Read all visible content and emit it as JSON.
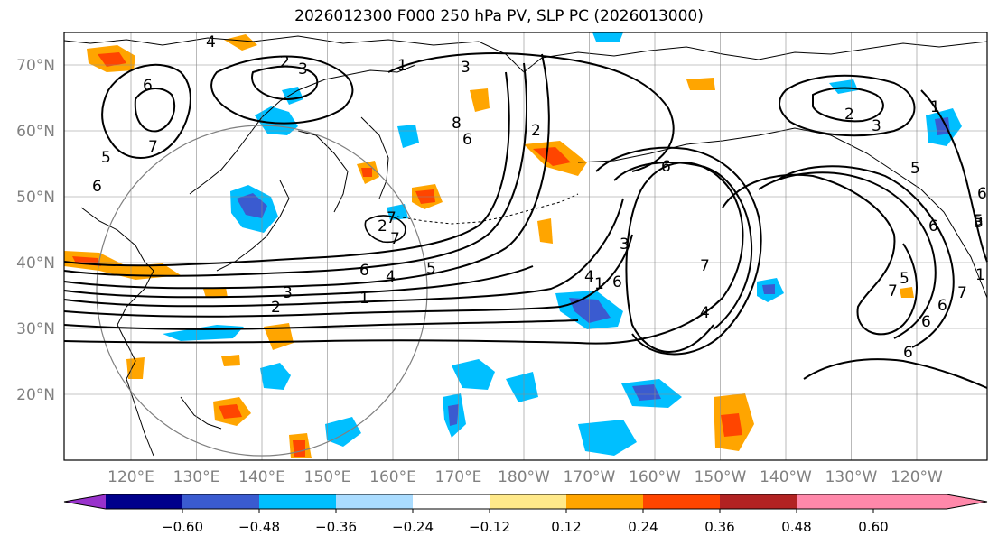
{
  "title": "2026012300 F000 250 hPa PV, SLP PC (2026013000)",
  "colors": {
    "coast": "#000000",
    "grid": "#8a8a8a",
    "circle": "#808080",
    "contour": "#000000",
    "label": "#808080"
  },
  "map": {
    "lat_labels": [
      "70°N",
      "60°N",
      "50°N",
      "40°N",
      "30°N",
      "20°N"
    ],
    "lon_labels": [
      "120°E",
      "130°E",
      "140°E",
      "150°E",
      "160°E",
      "170°E",
      "180°W",
      "170°W",
      "160°W",
      "150°W",
      "140°W",
      "130°W",
      "120°W"
    ],
    "contour_labels": [
      "4",
      "2",
      "3",
      "1",
      "3",
      "2",
      "3",
      "6",
      "5",
      "6",
      "7",
      "8",
      "6",
      "1",
      "5",
      "6",
      "7",
      "2",
      "7",
      "6",
      "5",
      "4",
      "6",
      "4",
      "3",
      "2",
      "1",
      "2",
      "3",
      "6",
      "7",
      "4",
      "5",
      "1",
      "7",
      "6",
      "6",
      "5",
      "1",
      "7",
      "6",
      "3",
      "6"
    ]
  },
  "colorbar": {
    "colors": [
      "#9932cc",
      "#00008b",
      "#3a5bd0",
      "#00bfff",
      "#aadcff",
      "#ffffff",
      "#ffe98a",
      "#ffa500",
      "#ff4500",
      "#b22222",
      "#ff88aa",
      "#ff88aa"
    ],
    "ticks": [
      "−0.60",
      "−0.48",
      "−0.36",
      "−0.24",
      "−0.12",
      "0.12",
      "0.24",
      "0.36",
      "0.48",
      "0.60"
    ]
  }
}
